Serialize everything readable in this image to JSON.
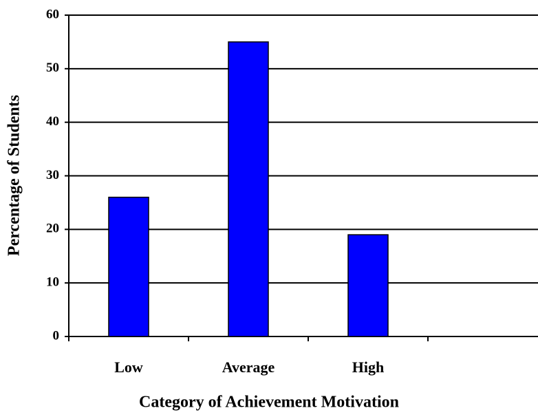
{
  "chart_data": {
    "type": "bar",
    "x_label": "Category of Achievement Motivation",
    "y_label": "Percentage of Students",
    "categories": [
      "Low",
      "Average",
      "High"
    ],
    "values": [
      26,
      55,
      19
    ],
    "color": "#0000ff",
    "ylim": [
      0,
      60
    ],
    "yticks": [
      0,
      10,
      20,
      30,
      40,
      50,
      60
    ],
    "grid": true
  }
}
